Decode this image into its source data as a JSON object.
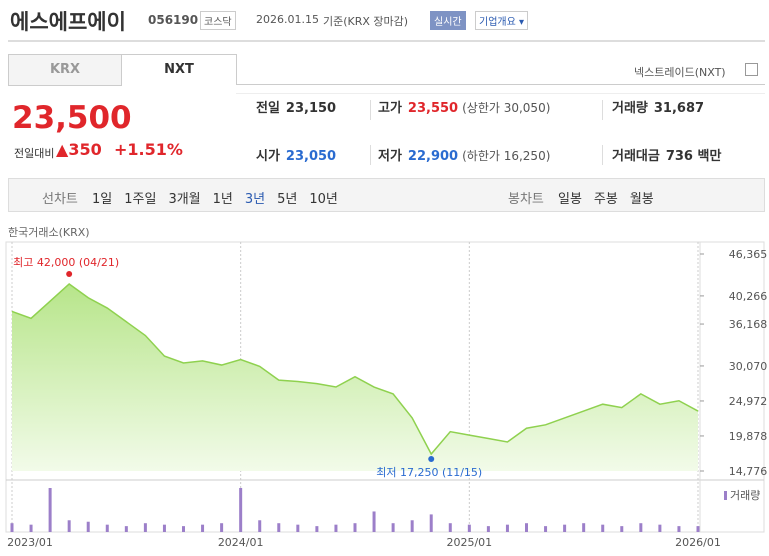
{
  "header": {
    "name": "에스에프에이",
    "code": "056190",
    "market": "코스닥",
    "date": "2026.01.15",
    "basis": "기준(KRX 장마감)",
    "realtime": "실시간",
    "company_info": "기업개요"
  },
  "tabs": [
    "KRX",
    "NXT"
  ],
  "nxt_label": "넥스트레이드(NXT)",
  "quote": {
    "price": "23,500",
    "change_label": "전일대비",
    "change": "350",
    "change_pct": "+1.51%"
  },
  "stats": [
    [
      {
        "label": "전일",
        "value": "23,150"
      },
      {
        "label": "고가",
        "value": "23,550",
        "note": "(상한가 30,050)"
      },
      {
        "label": "거래량",
        "value": "31,687"
      }
    ],
    [
      {
        "label": "시가",
        "value": "23,050"
      },
      {
        "label": "저가",
        "value": "22,900",
        "note": "(하한가 16,250)"
      },
      {
        "label": "거래대금",
        "value": "736 백만"
      }
    ]
  ],
  "periods": {
    "line_label": "선차트",
    "line_items": [
      "1일",
      "1주일",
      "3개월",
      "1년",
      "3년",
      "5년",
      "10년"
    ],
    "candle_label": "봉차트",
    "candle_items": [
      "일봉",
      "주봉",
      "월봉"
    ]
  },
  "chart_data": {
    "type": "line",
    "source": "한국거래소(KRX)",
    "categories": [
      "2023/01",
      null,
      null,
      null,
      null,
      null,
      null,
      null,
      null,
      null,
      null,
      null,
      "2024/01",
      null,
      null,
      null,
      null,
      null,
      null,
      null,
      null,
      null,
      null,
      null,
      "2025/01",
      null,
      null,
      null,
      null,
      null,
      null,
      null,
      null,
      null,
      null,
      null,
      "2026/01"
    ],
    "series": [
      {
        "color": "#8fd14f",
        "values": [
          38000,
          37000,
          39500,
          42000,
          40000,
          38500,
          36500,
          34500,
          31500,
          30500,
          30800,
          30200,
          31000,
          30000,
          28000,
          27800,
          27500,
          27000,
          28500,
          27000,
          26000,
          22500,
          17250,
          20500,
          20000,
          19500,
          19000,
          21000,
          21500,
          22500,
          23500,
          24500,
          24000,
          26000,
          24500,
          25000,
          23500
        ]
      },
      {
        "name": "거래량",
        "color": "#9c7fc9",
        "values": [
          300000,
          250000,
          1500000,
          400000,
          350000,
          250000,
          200000,
          300000,
          250000,
          200000,
          250000,
          300000,
          1500000,
          400000,
          300000,
          250000,
          200000,
          250000,
          300000,
          700000,
          300000,
          400000,
          600000,
          300000,
          250000,
          200000,
          250000,
          300000,
          200000,
          250000,
          300000,
          250000,
          200000,
          300000,
          250000,
          200000,
          200000
        ]
      }
    ],
    "ylim": [
      14776,
      46365
    ],
    "yticks": [
      {
        "value": 14776,
        "label": "14,776"
      },
      {
        "value": 19878,
        "label": "19,878"
      },
      {
        "value": 24972,
        "label": "24,972"
      },
      {
        "value": 30070,
        "label": "30,070"
      },
      {
        "value": 36168,
        "label": "36,168"
      },
      {
        "value": 40266,
        "label": "40,266"
      },
      {
        "value": 46365,
        "label": "46,365"
      }
    ],
    "annotations": [
      "최고 42,000 (04/21)",
      "최저 17,250 (11/15)"
    ],
    "high_color": "#e0262b",
    "low_color": "#2a6bd0"
  }
}
